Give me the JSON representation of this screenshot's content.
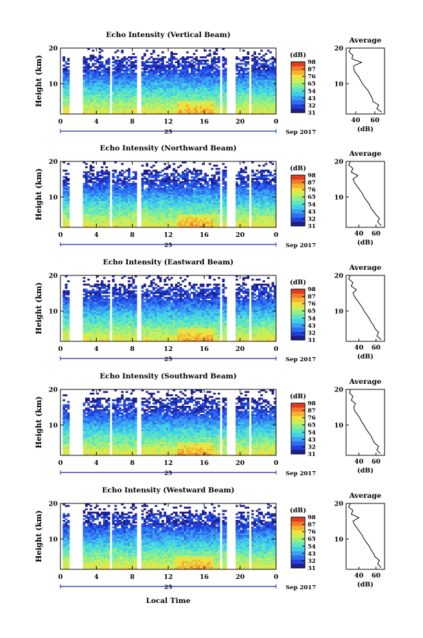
{
  "figure": {
    "xlabel": "Local Time",
    "date_label": "25",
    "month_label": "Sep 2017",
    "colorbar_unit": "(dB)",
    "avg_title": "Average",
    "avg_xlabel": "(dB)",
    "colorbar_ticks": [
      "31",
      "32",
      "43",
      "54",
      "65",
      "76",
      "87",
      "98"
    ],
    "palette": [
      "#1e1e8c",
      "#2140d8",
      "#2f6ef0",
      "#3aa0f2",
      "#40cfe8",
      "#5ee6c0",
      "#90ee8a",
      "#c8ef5a",
      "#f0e040",
      "#f5b030",
      "#f07a28",
      "#e03a20"
    ]
  },
  "chart_data": [
    {
      "type": "heatmap",
      "title": "Echo Intensity (Vertical Beam)",
      "ylabel": "Height (km)",
      "x_ticks": [
        "0",
        "4",
        "8",
        "12",
        "16",
        "20",
        "0"
      ],
      "y_ticks": [
        "20",
        "10"
      ],
      "xlim_hours": [
        0,
        24
      ],
      "ylim_km": [
        1.5,
        20
      ],
      "gaps_hours": [
        [
          0,
          0.3
        ],
        [
          1.0,
          2.4
        ],
        [
          5.4,
          5.8
        ],
        [
          8.6,
          9.1
        ],
        [
          17.7,
          18.1
        ],
        [
          18.6,
          19.4
        ],
        [
          20.4,
          20.6
        ],
        [
          20.9,
          21.2
        ]
      ],
      "color_scale_db": [
        31,
        98
      ],
      "avg_profile": {
        "x_ticks": [
          "40",
          "60"
        ],
        "xlim_db": [
          30,
          70
        ],
        "ylim_km": [
          1.5,
          20
        ],
        "heights_km": [
          2,
          3,
          4,
          5,
          6,
          7,
          8,
          9,
          10,
          11,
          12,
          13,
          14,
          15,
          16,
          17,
          18,
          19,
          20
        ],
        "db": [
          67,
          62,
          64,
          58,
          57,
          55,
          53,
          50,
          47,
          45,
          43,
          40,
          38,
          38,
          46,
          36,
          37,
          33,
          35
        ]
      }
    },
    {
      "type": "heatmap",
      "title": "Echo Intensity (Northward Beam)",
      "ylabel": "Height (km)",
      "x_ticks": [
        "0",
        "4",
        "8",
        "12",
        "16",
        "20",
        "0"
      ],
      "y_ticks": [
        "20",
        "10"
      ],
      "xlim_hours": [
        0,
        24
      ],
      "ylim_km": [
        1.5,
        20
      ],
      "gaps_hours": [
        [
          0,
          0.3
        ],
        [
          1.0,
          2.4
        ],
        [
          5.4,
          5.8
        ],
        [
          8.6,
          9.1
        ],
        [
          17.7,
          18.1
        ],
        [
          18.6,
          19.4
        ],
        [
          20.4,
          20.6
        ],
        [
          20.9,
          21.2
        ]
      ],
      "color_scale_db": [
        31,
        98
      ],
      "avg_profile": {
        "x_ticks": [
          "40",
          "60"
        ],
        "xlim_db": [
          25,
          70
        ],
        "ylim_km": [
          1.5,
          20
        ],
        "heights_km": [
          2,
          3,
          4,
          5,
          6,
          7,
          8,
          9,
          10,
          11,
          12,
          13,
          14,
          15,
          16,
          17,
          18,
          19,
          20
        ],
        "db": [
          66,
          62,
          64,
          60,
          57,
          54,
          52,
          49,
          46,
          44,
          41,
          38,
          35,
          33,
          39,
          31,
          33,
          28,
          30
        ]
      }
    },
    {
      "type": "heatmap",
      "title": "Echo Intensity (Eastward Beam)",
      "ylabel": "Height (km)",
      "x_ticks": [
        "0",
        "4",
        "8",
        "12",
        "16",
        "20",
        "0"
      ],
      "y_ticks": [
        "20",
        "10"
      ],
      "xlim_hours": [
        0,
        24
      ],
      "ylim_km": [
        1.5,
        20
      ],
      "gaps_hours": [
        [
          0,
          0.3
        ],
        [
          1.0,
          2.4
        ],
        [
          5.4,
          5.8
        ],
        [
          8.6,
          9.1
        ],
        [
          17.7,
          18.1
        ],
        [
          18.6,
          19.4
        ],
        [
          20.4,
          20.6
        ],
        [
          20.9,
          21.2
        ]
      ],
      "color_scale_db": [
        31,
        98
      ],
      "avg_profile": {
        "x_ticks": [
          "40",
          "60"
        ],
        "xlim_db": [
          25,
          70
        ],
        "ylim_km": [
          1.5,
          20
        ],
        "heights_km": [
          2,
          3,
          4,
          5,
          6,
          7,
          8,
          9,
          10,
          11,
          12,
          13,
          14,
          15,
          16,
          17,
          18,
          19,
          20
        ],
        "db": [
          66,
          61,
          63,
          59,
          57,
          54,
          52,
          49,
          46,
          44,
          41,
          38,
          35,
          33,
          37,
          31,
          33,
          28,
          30
        ]
      }
    },
    {
      "type": "heatmap",
      "title": "Echo Intensity (Southward Beam)",
      "ylabel": "Height (km)",
      "x_ticks": [
        "0",
        "4",
        "8",
        "12",
        "16",
        "20",
        "0"
      ],
      "y_ticks": [
        "20",
        "10"
      ],
      "xlim_hours": [
        0,
        24
      ],
      "ylim_km": [
        1.5,
        20
      ],
      "gaps_hours": [
        [
          0,
          0.3
        ],
        [
          1.0,
          2.4
        ],
        [
          5.4,
          5.8
        ],
        [
          8.6,
          9.1
        ],
        [
          17.7,
          18.1
        ],
        [
          18.6,
          19.4
        ],
        [
          20.4,
          20.6
        ],
        [
          20.9,
          21.2
        ]
      ],
      "color_scale_db": [
        31,
        98
      ],
      "avg_profile": {
        "x_ticks": [
          "40",
          "60"
        ],
        "xlim_db": [
          25,
          70
        ],
        "ylim_km": [
          1.5,
          20
        ],
        "heights_km": [
          2,
          3,
          4,
          5,
          6,
          7,
          8,
          9,
          10,
          11,
          12,
          13,
          14,
          15,
          16,
          17,
          18,
          19,
          20
        ],
        "db": [
          65,
          61,
          63,
          58,
          56,
          54,
          51,
          48,
          46,
          43,
          41,
          38,
          35,
          34,
          36,
          31,
          33,
          29,
          30
        ]
      }
    },
    {
      "type": "heatmap",
      "title": "Echo Intensity (Westward Beam)",
      "ylabel": "Height (km)",
      "x_ticks": [
        "0",
        "4",
        "8",
        "12",
        "16",
        "20",
        "0"
      ],
      "y_ticks": [
        "20",
        "10"
      ],
      "xlim_hours": [
        0,
        24
      ],
      "ylim_km": [
        1.5,
        20
      ],
      "gaps_hours": [
        [
          0,
          0.3
        ],
        [
          1.0,
          2.4
        ],
        [
          5.4,
          5.8
        ],
        [
          8.6,
          9.1
        ],
        [
          17.7,
          18.1
        ],
        [
          18.6,
          19.4
        ],
        [
          20.4,
          20.6
        ],
        [
          20.9,
          21.2
        ]
      ],
      "color_scale_db": [
        31,
        98
      ],
      "avg_profile": {
        "x_ticks": [
          "40",
          "60"
        ],
        "xlim_db": [
          25,
          70
        ],
        "ylim_km": [
          1.5,
          20
        ],
        "heights_km": [
          2,
          3,
          4,
          5,
          6,
          7,
          8,
          9,
          10,
          11,
          12,
          13,
          14,
          15,
          16,
          17,
          18,
          19,
          20
        ],
        "db": [
          66,
          62,
          64,
          59,
          57,
          54,
          52,
          49,
          46,
          44,
          41,
          38,
          35,
          33,
          40,
          31,
          33,
          28,
          30
        ]
      }
    }
  ]
}
